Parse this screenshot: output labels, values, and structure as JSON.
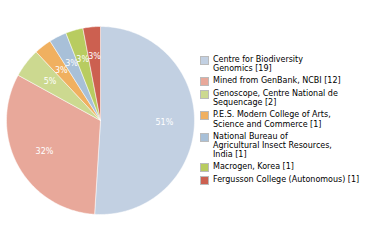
{
  "chart_data": {
    "type": "pie",
    "categories": [
      "Centre for Biodiversity\nGenomics [19]",
      "Mined from GenBank, NCBI [12]",
      "Genoscope, Centre National de\nSequencage [2]",
      "P.E.S. Modern College of Arts,\nScience and Commerce [1]",
      "National Bureau of\nAgricultural Insect Resources,\nIndia [1]",
      "Macrogen, Korea [1]",
      "Fergusson College (Autonomous) [1]"
    ],
    "values": [
      51,
      32,
      5,
      3,
      3,
      3,
      3
    ],
    "value_labels": [
      "51%",
      "32%",
      "5%",
      "3%",
      "3%",
      "3%",
      "3%"
    ],
    "colors": [
      "#c2d0e2",
      "#e8a89a",
      "#ccd990",
      "#f0b060",
      "#a8c0d8",
      "#b8cc60",
      "#cc6050"
    ],
    "data_labels": true,
    "legend": "right"
  }
}
